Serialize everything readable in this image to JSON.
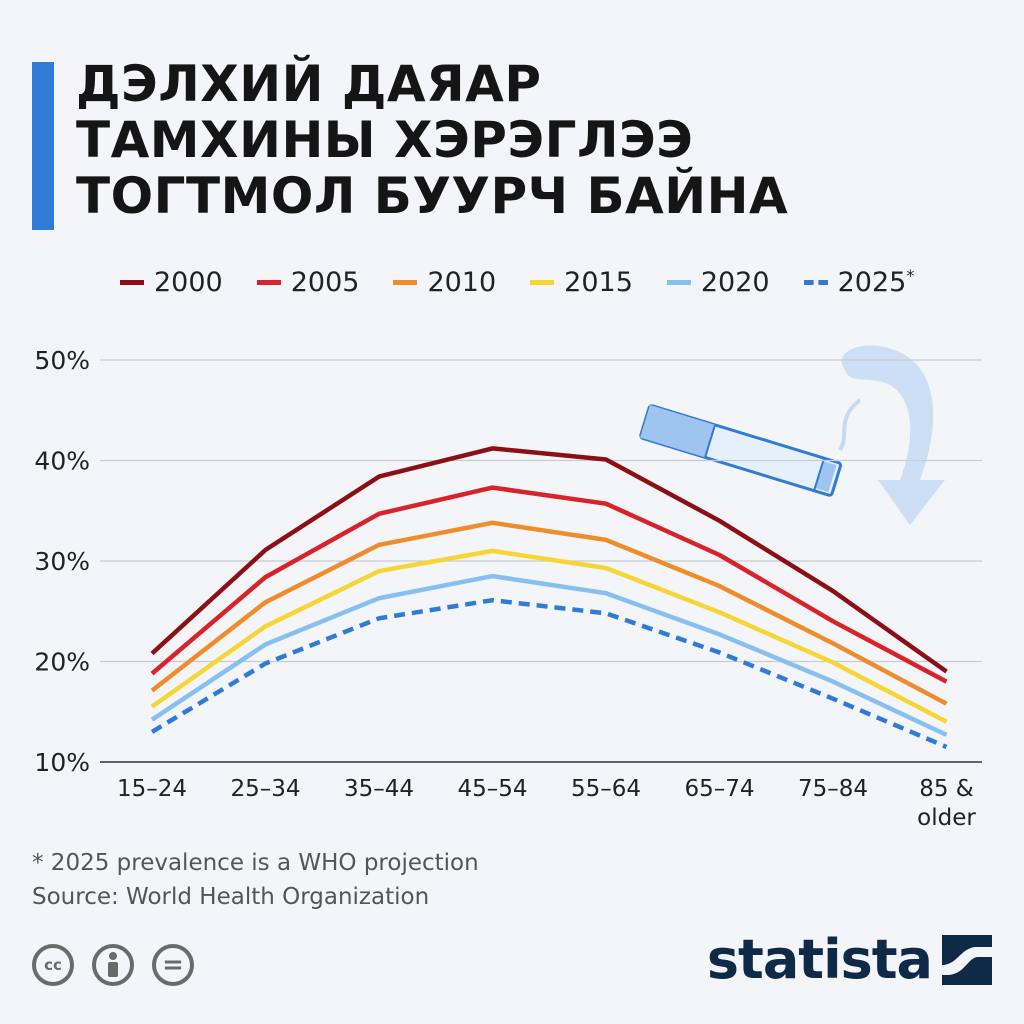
{
  "title_lines": [
    "ДЭЛХИЙ ДАЯАР",
    "ТАМХИНЫ ХЭРЭГЛЭЭ",
    "ТОГТМОЛ БУУРЧ БАЙНА"
  ],
  "legend": [
    {
      "label": "2000",
      "color": "#8b1016",
      "dashed": false
    },
    {
      "label": "2005",
      "color": "#d8232a",
      "dashed": false
    },
    {
      "label": "2010",
      "color": "#ef8c2c",
      "dashed": false
    },
    {
      "label": "2015",
      "color": "#f6d535",
      "dashed": false
    },
    {
      "label": "2020",
      "color": "#86bff0",
      "dashed": false
    },
    {
      "label": "2025",
      "color": "#2f7bd6",
      "dashed": true
    }
  ],
  "legend_asterisk": "*",
  "chart_data": {
    "type": "line",
    "categories": [
      "15–24",
      "25–34",
      "35–44",
      "45–54",
      "55–64",
      "65–74",
      "75–84",
      "85 & older"
    ],
    "category_lines": [
      [
        "15–24"
      ],
      [
        "25–34"
      ],
      [
        "35–44"
      ],
      [
        "45–54"
      ],
      [
        "55–64"
      ],
      [
        "65–74"
      ],
      [
        "75–84"
      ],
      [
        "85 &",
        "older"
      ]
    ],
    "y_ticks": [
      "10%",
      "20%",
      "30%",
      "40%",
      "50%"
    ],
    "y_tick_values": [
      10,
      20,
      30,
      40,
      50
    ],
    "ylim": [
      10,
      50
    ],
    "grid": true,
    "legend_position": "top",
    "series": [
      {
        "name": "2000",
        "values": [
          20.8,
          31.1,
          38.4,
          41.2,
          40.1,
          34.0,
          27.0,
          19.0
        ]
      },
      {
        "name": "2005",
        "values": [
          18.8,
          28.4,
          34.7,
          37.3,
          35.7,
          30.6,
          24.0,
          18.0
        ]
      },
      {
        "name": "2010",
        "values": [
          17.1,
          25.9,
          31.6,
          33.8,
          32.1,
          27.5,
          21.8,
          15.8
        ]
      },
      {
        "name": "2015",
        "values": [
          15.5,
          23.5,
          29.0,
          31.0,
          29.3,
          24.9,
          19.9,
          14.0
        ]
      },
      {
        "name": "2020",
        "values": [
          14.2,
          21.7,
          26.3,
          28.5,
          26.8,
          22.7,
          18.0,
          12.7
        ]
      },
      {
        "name": "2025",
        "values": [
          13.0,
          19.8,
          24.3,
          26.1,
          24.8,
          20.9,
          16.3,
          11.5
        ]
      }
    ]
  },
  "footnote": "* 2025 prevalence is a WHO projection",
  "source": "Source: World Health Organization",
  "license_icons": [
    "cc-icon",
    "attribution-icon",
    "no-derivatives-icon"
  ],
  "license_glyphs": [
    "cc",
    "",
    "="
  ],
  "brand": "statista"
}
